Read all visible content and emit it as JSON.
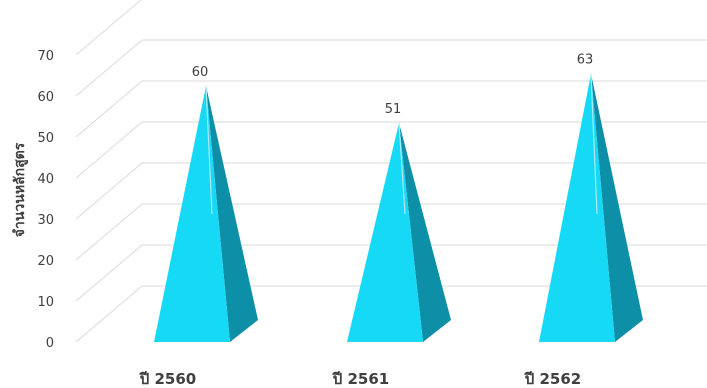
{
  "chart_data": {
    "type": "bar",
    "style": "3d-pyramid",
    "categories": [
      "ปี 2560",
      "ปี 2561",
      "ปี 2562"
    ],
    "values": [
      60,
      51,
      63
    ],
    "data_labels": [
      "60",
      "51",
      "63"
    ],
    "ylabel": "จำนวนหลักสูตร",
    "xlabel": "",
    "title": "",
    "ylim": [
      0,
      70
    ],
    "yticks": [
      "0",
      "10",
      "20",
      "30",
      "40",
      "50",
      "60",
      "70"
    ],
    "grid": true,
    "legend": "none",
    "colors": {
      "front": "#16d9f6",
      "side": "#0d8fa8",
      "grid": "#d9d9d9",
      "text": "#404040"
    }
  }
}
